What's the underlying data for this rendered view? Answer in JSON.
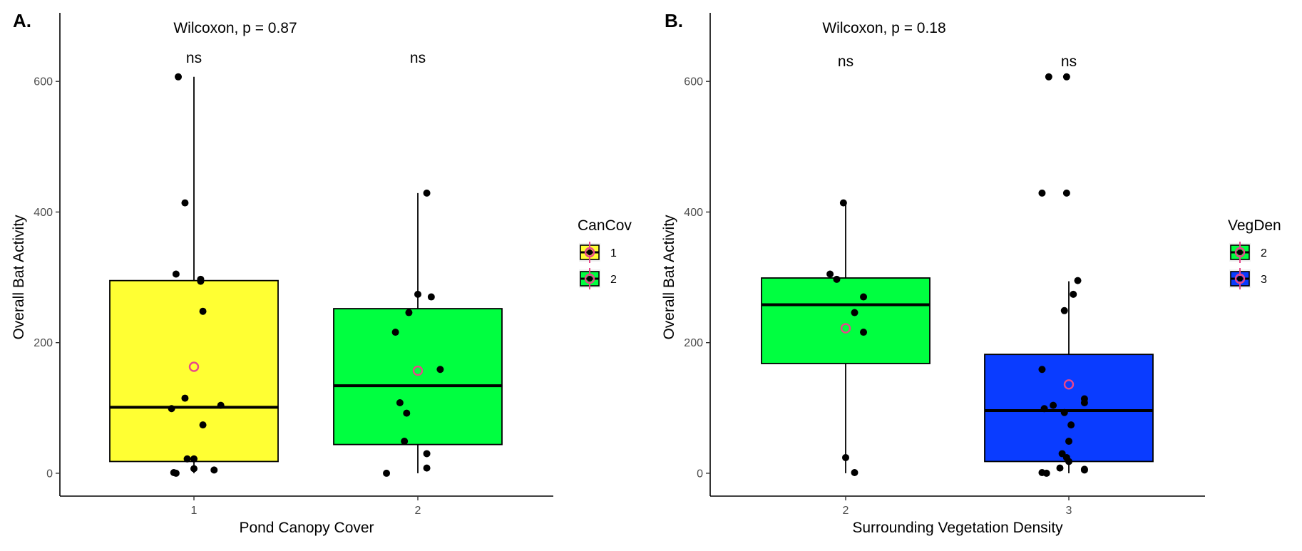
{
  "chart_data": [
    {
      "panel": "A.",
      "type": "box",
      "ylabel": "Overall Bat Activity",
      "xlabel": "Pond Canopy Cover",
      "ylim": [
        -35,
        705
      ],
      "yticks": [
        0,
        200,
        400,
        600
      ],
      "categories": [
        "1",
        "2"
      ],
      "test_label": "Wilcoxon, p = 0.87",
      "signif": [
        "ns",
        "ns"
      ],
      "legend": {
        "title": "CanCov",
        "entries": [
          "1",
          "2"
        ]
      },
      "fills": [
        "#ffff33",
        "#00ff40"
      ],
      "boxes": [
        {
          "q1": 18,
          "median": 101,
          "q3": 295,
          "whisker_low": 0,
          "whisker_high": 607,
          "mean": 163
        },
        {
          "q1": 44,
          "median": 134,
          "q3": 252,
          "whisker_low": 0,
          "whisker_high": 429,
          "mean": 157
        }
      ],
      "points": [
        [
          [
            0.93,
            607
          ],
          [
            0.96,
            414
          ],
          [
            0.92,
            305
          ],
          [
            1.03,
            297
          ],
          [
            1.03,
            294
          ],
          [
            1.04,
            248
          ],
          [
            0.96,
            115
          ],
          [
            1.12,
            104
          ],
          [
            0.9,
            99
          ],
          [
            1.04,
            74
          ],
          [
            0.97,
            22
          ],
          [
            1.0,
            22
          ],
          [
            1.0,
            7
          ],
          [
            1.09,
            5
          ],
          [
            0.91,
            1
          ],
          [
            0.92,
            0
          ]
        ],
        [
          [
            2.04,
            429
          ],
          [
            2.0,
            274
          ],
          [
            2.06,
            270
          ],
          [
            1.96,
            246
          ],
          [
            1.9,
            216
          ],
          [
            2.1,
            159
          ],
          [
            1.92,
            108
          ],
          [
            1.95,
            92
          ],
          [
            1.94,
            49
          ],
          [
            2.04,
            30
          ],
          [
            2.04,
            8
          ],
          [
            1.86,
            0
          ]
        ]
      ],
      "mean_color": "#e8478b"
    },
    {
      "panel": "B.",
      "type": "box",
      "ylabel": "Overall Bat Activity",
      "xlabel": "Surrounding Vegetation Density",
      "ylim": [
        -35,
        705
      ],
      "yticks": [
        0,
        200,
        400,
        600
      ],
      "categories": [
        "2",
        "3"
      ],
      "test_label": "Wilcoxon, p = 0.18",
      "signif": [
        "ns",
        "ns"
      ],
      "legend": {
        "title": "VegDen",
        "entries": [
          "2",
          "3"
        ]
      },
      "fills": [
        "#00ff40",
        "#0a3cff"
      ],
      "boxes": [
        {
          "q1": 168,
          "median": 258,
          "q3": 299,
          "whisker_low": 0,
          "whisker_high": 414,
          "mean": 222
        },
        {
          "q1": 18,
          "median": 96,
          "q3": 182,
          "whisker_low": 0,
          "whisker_high": 294,
          "mean": 136
        }
      ],
      "points": [
        [
          [
            1.99,
            414
          ],
          [
            1.93,
            305
          ],
          [
            1.96,
            297
          ],
          [
            2.08,
            270
          ],
          [
            2.04,
            246
          ],
          [
            2.08,
            216
          ],
          [
            2.0,
            24
          ],
          [
            2.04,
            1
          ]
        ],
        [
          [
            2.91,
            607
          ],
          [
            2.99,
            607
          ],
          [
            2.88,
            429
          ],
          [
            2.99,
            429
          ],
          [
            3.04,
            295
          ],
          [
            3.02,
            274
          ],
          [
            2.98,
            249
          ],
          [
            2.88,
            159
          ],
          [
            3.07,
            114
          ],
          [
            3.07,
            108
          ],
          [
            2.93,
            104
          ],
          [
            2.89,
            99
          ],
          [
            2.98,
            93
          ],
          [
            3.01,
            74
          ],
          [
            3.0,
            49
          ],
          [
            2.97,
            30
          ],
          [
            2.99,
            24
          ],
          [
            3.0,
            18
          ],
          [
            2.96,
            8
          ],
          [
            3.07,
            6
          ],
          [
            3.07,
            5
          ],
          [
            2.88,
            1
          ],
          [
            2.9,
            0
          ]
        ]
      ],
      "mean_color": "#e8478b"
    }
  ]
}
